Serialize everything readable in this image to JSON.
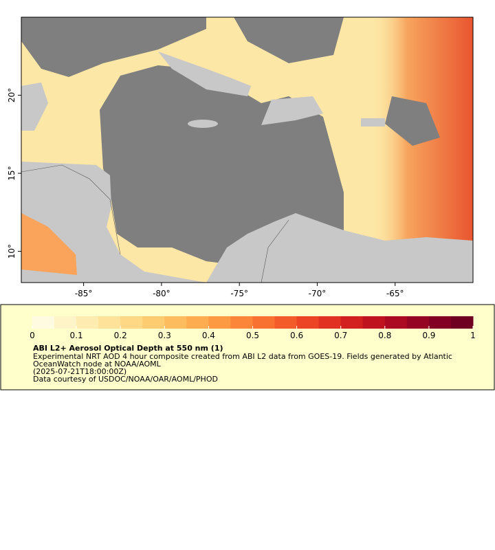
{
  "map": {
    "xlim": [
      -89,
      -60
    ],
    "ylim": [
      8,
      25
    ],
    "xticks": [
      {
        "value": -85,
        "label": "-85°"
      },
      {
        "value": -80,
        "label": "-80°"
      },
      {
        "value": -75,
        "label": "-75°"
      },
      {
        "value": -70,
        "label": "-70°"
      },
      {
        "value": -65,
        "label": "-65°"
      }
    ],
    "yticks": [
      {
        "value": 10,
        "label": "10°"
      },
      {
        "value": 15,
        "label": "15°"
      },
      {
        "value": 20,
        "label": "20°"
      }
    ]
  },
  "colorbar": {
    "lim": [
      0,
      1
    ],
    "ticks": [
      0,
      0.1,
      0.2,
      0.3,
      0.4,
      0.5,
      0.6,
      0.7,
      0.8,
      0.9,
      1
    ],
    "colors": [
      "#fffbe0",
      "#fff3c8",
      "#feebb0",
      "#fee29a",
      "#fed884",
      "#fecc70",
      "#fdbd5e",
      "#fdac4f",
      "#fc9a43",
      "#fb8639",
      "#f97131",
      "#f45b2b",
      "#ec4526",
      "#e03122",
      "#d1201f",
      "#bf141f",
      "#ab0a22",
      "#960423",
      "#820024",
      "#700022"
    ]
  },
  "legend": {
    "title": "ABI L2+ Aerosol Optical Depth at 550 nm (1)",
    "lines": [
      "Experimental NRT AOD 4 hour composite created from ABI L2 data from GOES-19. Fields generated by Atlantic",
      "OceanWatch node at NOAA/AOML",
      "(2025-07-21T18:00:00Z)",
      "Data courtesy of USDOC/NOAA/OAR/AOML/PHOD"
    ]
  }
}
